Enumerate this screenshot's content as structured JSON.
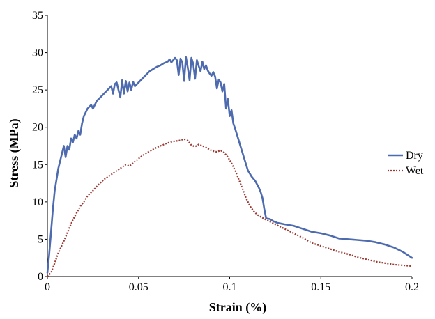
{
  "chart_data": {
    "type": "line",
    "title": "",
    "xlabel": "Strain (%)",
    "ylabel": "Stress (MPa)",
    "xlim": [
      0,
      0.2
    ],
    "ylim": [
      0,
      35
    ],
    "x_ticks": [
      "0",
      "0.05",
      "0.1",
      "0.15",
      "0.2"
    ],
    "y_ticks": [
      "0",
      "5",
      "10",
      "15",
      "20",
      "25",
      "30",
      "35"
    ],
    "grid": false,
    "legend_position": "right",
    "series": [
      {
        "name": "Dry",
        "color": "#4e6bb0",
        "style": "solid",
        "points": [
          [
            0.0,
            0.5
          ],
          [
            0.001,
            3
          ],
          [
            0.002,
            6
          ],
          [
            0.003,
            9
          ],
          [
            0.004,
            11.5
          ],
          [
            0.005,
            13
          ],
          [
            0.006,
            14.5
          ],
          [
            0.007,
            15.5
          ],
          [
            0.008,
            16.5
          ],
          [
            0.009,
            17.5
          ],
          [
            0.01,
            16
          ],
          [
            0.011,
            17.5
          ],
          [
            0.012,
            17
          ],
          [
            0.013,
            18.5
          ],
          [
            0.014,
            18
          ],
          [
            0.015,
            19
          ],
          [
            0.016,
            18.5
          ],
          [
            0.017,
            19.5
          ],
          [
            0.018,
            19
          ],
          [
            0.019,
            20.5
          ],
          [
            0.02,
            21.5
          ],
          [
            0.022,
            22.5
          ],
          [
            0.024,
            23
          ],
          [
            0.025,
            22.5
          ],
          [
            0.027,
            23.5
          ],
          [
            0.029,
            24
          ],
          [
            0.031,
            24.5
          ],
          [
            0.033,
            25
          ],
          [
            0.035,
            25.5
          ],
          [
            0.036,
            24.5
          ],
          [
            0.037,
            25.8
          ],
          [
            0.038,
            26
          ],
          [
            0.039,
            25
          ],
          [
            0.04,
            24
          ],
          [
            0.041,
            26.3
          ],
          [
            0.042,
            24.5
          ],
          [
            0.043,
            26.2
          ],
          [
            0.044,
            24.8
          ],
          [
            0.045,
            26
          ],
          [
            0.046,
            25
          ],
          [
            0.047,
            26.1
          ],
          [
            0.048,
            25.5
          ],
          [
            0.05,
            26
          ],
          [
            0.052,
            26.5
          ],
          [
            0.054,
            27
          ],
          [
            0.056,
            27.5
          ],
          [
            0.058,
            27.8
          ],
          [
            0.06,
            28.1
          ],
          [
            0.062,
            28.3
          ],
          [
            0.064,
            28.6
          ],
          [
            0.066,
            28.8
          ],
          [
            0.067,
            29.1
          ],
          [
            0.068,
            28.7
          ],
          [
            0.069,
            29.0
          ],
          [
            0.07,
            29.3
          ],
          [
            0.071,
            29.0
          ],
          [
            0.072,
            27.0
          ],
          [
            0.073,
            29.2
          ],
          [
            0.074,
            28.7
          ],
          [
            0.075,
            26.2
          ],
          [
            0.076,
            29.4
          ],
          [
            0.077,
            28.0
          ],
          [
            0.078,
            26.3
          ],
          [
            0.079,
            29.3
          ],
          [
            0.08,
            28.5
          ],
          [
            0.081,
            26.5
          ],
          [
            0.082,
            29.0
          ],
          [
            0.083,
            28.2
          ],
          [
            0.084,
            27.5
          ],
          [
            0.085,
            28.8
          ],
          [
            0.086,
            27.8
          ],
          [
            0.087,
            28.3
          ],
          [
            0.088,
            27.6
          ],
          [
            0.089,
            27.2
          ],
          [
            0.09,
            26.9
          ],
          [
            0.091,
            27.4
          ],
          [
            0.092,
            26.8
          ],
          [
            0.093,
            25.2
          ],
          [
            0.094,
            26.4
          ],
          [
            0.095,
            26.0
          ],
          [
            0.096,
            24.8
          ],
          [
            0.097,
            25.8
          ],
          [
            0.098,
            22.5
          ],
          [
            0.099,
            23.8
          ],
          [
            0.1,
            21.5
          ],
          [
            0.101,
            22.3
          ],
          [
            0.102,
            20.5
          ],
          [
            0.103,
            19.8
          ],
          [
            0.104,
            19.0
          ],
          [
            0.105,
            18.2
          ],
          [
            0.106,
            17.4
          ],
          [
            0.107,
            16.6
          ],
          [
            0.108,
            15.8
          ],
          [
            0.109,
            15.0
          ],
          [
            0.11,
            14.2
          ],
          [
            0.112,
            13.4
          ],
          [
            0.114,
            12.8
          ],
          [
            0.116,
            11.9
          ],
          [
            0.117,
            11.3
          ],
          [
            0.118,
            10.5
          ],
          [
            0.119,
            9.0
          ],
          [
            0.12,
            7.8
          ],
          [
            0.122,
            7.7
          ],
          [
            0.124,
            7.4
          ],
          [
            0.126,
            7.2
          ],
          [
            0.128,
            7.1
          ],
          [
            0.13,
            7.0
          ],
          [
            0.135,
            6.8
          ],
          [
            0.14,
            6.4
          ],
          [
            0.145,
            6.0
          ],
          [
            0.15,
            5.8
          ],
          [
            0.155,
            5.5
          ],
          [
            0.16,
            5.1
          ],
          [
            0.165,
            5.0
          ],
          [
            0.17,
            4.9
          ],
          [
            0.175,
            4.8
          ],
          [
            0.18,
            4.6
          ],
          [
            0.185,
            4.3
          ],
          [
            0.19,
            3.9
          ],
          [
            0.195,
            3.3
          ],
          [
            0.2,
            2.5
          ]
        ]
      },
      {
        "name": "Wet",
        "color": "#9b3a34",
        "style": "dotted",
        "points": [
          [
            0.0,
            0.0
          ],
          [
            0.002,
            0.5
          ],
          [
            0.004,
            1.8
          ],
          [
            0.006,
            3.2
          ],
          [
            0.008,
            4.2
          ],
          [
            0.01,
            5.3
          ],
          [
            0.012,
            6.5
          ],
          [
            0.014,
            7.6
          ],
          [
            0.016,
            8.5
          ],
          [
            0.018,
            9.4
          ],
          [
            0.02,
            10.0
          ],
          [
            0.022,
            10.8
          ],
          [
            0.025,
            11.5
          ],
          [
            0.028,
            12.3
          ],
          [
            0.031,
            13.0
          ],
          [
            0.034,
            13.5
          ],
          [
            0.037,
            14.0
          ],
          [
            0.04,
            14.5
          ],
          [
            0.043,
            15.0
          ],
          [
            0.045,
            14.8
          ],
          [
            0.048,
            15.4
          ],
          [
            0.051,
            16.0
          ],
          [
            0.054,
            16.5
          ],
          [
            0.057,
            16.9
          ],
          [
            0.06,
            17.3
          ],
          [
            0.063,
            17.6
          ],
          [
            0.066,
            17.9
          ],
          [
            0.069,
            18.1
          ],
          [
            0.072,
            18.2
          ],
          [
            0.075,
            18.4
          ],
          [
            0.077,
            18.2
          ],
          [
            0.079,
            17.6
          ],
          [
            0.081,
            17.4
          ],
          [
            0.083,
            17.7
          ],
          [
            0.085,
            17.5
          ],
          [
            0.087,
            17.3
          ],
          [
            0.089,
            17.0
          ],
          [
            0.091,
            16.8
          ],
          [
            0.093,
            16.7
          ],
          [
            0.095,
            16.9
          ],
          [
            0.097,
            16.6
          ],
          [
            0.099,
            16.0
          ],
          [
            0.101,
            15.2
          ],
          [
            0.103,
            14.2
          ],
          [
            0.105,
            13.0
          ],
          [
            0.107,
            11.8
          ],
          [
            0.109,
            10.5
          ],
          [
            0.111,
            9.5
          ],
          [
            0.113,
            8.8
          ],
          [
            0.115,
            8.3
          ],
          [
            0.117,
            8.0
          ],
          [
            0.12,
            7.6
          ],
          [
            0.125,
            7.0
          ],
          [
            0.13,
            6.4
          ],
          [
            0.135,
            5.8
          ],
          [
            0.14,
            5.2
          ],
          [
            0.145,
            4.5
          ],
          [
            0.15,
            4.1
          ],
          [
            0.155,
            3.7
          ],
          [
            0.16,
            3.3
          ],
          [
            0.165,
            3.0
          ],
          [
            0.17,
            2.6
          ],
          [
            0.175,
            2.3
          ],
          [
            0.18,
            2.0
          ],
          [
            0.185,
            1.8
          ],
          [
            0.19,
            1.6
          ],
          [
            0.195,
            1.5
          ],
          [
            0.2,
            1.4
          ]
        ]
      }
    ]
  }
}
